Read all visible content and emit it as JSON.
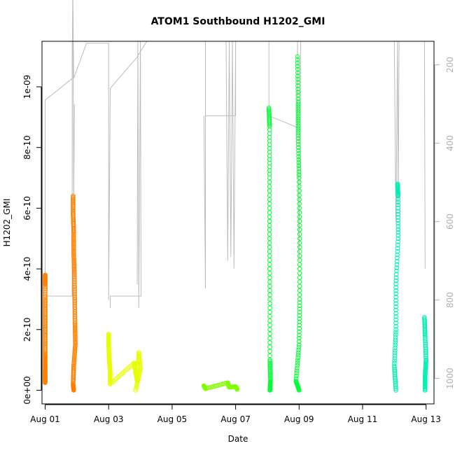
{
  "chart_data": {
    "type": "scatter",
    "title": "ATOM1 Southbound H1202_GMI",
    "xlabel": "Date",
    "ylabel": "H1202_GMI",
    "x_ticks": [
      "Aug 01",
      "Aug 03",
      "Aug 05",
      "Aug 07",
      "Aug 09",
      "Aug 11",
      "Aug 13"
    ],
    "x_range_days": [
      0.9,
      13.25
    ],
    "y_ticks": [
      "0e+00",
      "2e-10",
      "4e-10",
      "6e-10",
      "8e-10",
      "1e-09"
    ],
    "ylim": [
      -4.5e-11,
      1.15e-09
    ],
    "right_axis_ticks": [
      200,
      400,
      600,
      800,
      1000
    ],
    "right_axis_range": [
      1065,
      140
    ],
    "colors": {
      "orange": "#ff8000",
      "yellow": "#e6ff00",
      "green": "#00ff33",
      "teal": "#00f0b0",
      "line": "#bdbdbd",
      "right_axis": "#b0b0b0"
    },
    "series": [
      {
        "color": "#ff8000",
        "points": [
          [
            1.0,
            3.5e-10
          ],
          [
            1.0,
            3.8e-10
          ],
          [
            1.0,
            3e-10
          ],
          [
            1.0,
            2.4e-10
          ],
          [
            1.0,
            1.8e-10
          ],
          [
            1.0,
            1.2e-10
          ],
          [
            1.0,
            8e-11
          ],
          [
            1.0,
            5e-11
          ],
          [
            1.0,
            2.5e-11
          ]
        ]
      },
      {
        "color": "#ff8000",
        "points": [
          [
            1.88,
            6.4e-10
          ],
          [
            1.88,
            5.8e-10
          ],
          [
            1.9,
            5.2e-10
          ],
          [
            1.9,
            4.5e-10
          ],
          [
            1.92,
            3.8e-10
          ],
          [
            1.93,
            3e-10
          ],
          [
            1.94,
            2.2e-10
          ],
          [
            1.95,
            1.5e-10
          ],
          [
            1.9,
            8e-11
          ],
          [
            1.88,
            2e-11
          ],
          [
            1.9,
            0
          ]
        ]
      },
      {
        "color": "#e6ff00",
        "points": [
          [
            3.0,
            1.85e-10
          ],
          [
            3.0,
            1.5e-10
          ],
          [
            3.02,
            1e-10
          ],
          [
            3.05,
            6e-11
          ],
          [
            3.05,
            2e-11
          ],
          [
            3.8,
            9e-11
          ],
          [
            3.85,
            6e-11
          ],
          [
            3.9,
            3e-11
          ],
          [
            3.95,
            1.25e-10
          ],
          [
            4.0,
            7e-11
          ],
          [
            3.85,
            0
          ]
        ]
      },
      {
        "color": "#7fff00",
        "points": [
          [
            6.0,
            1.5e-11
          ],
          [
            6.05,
            5e-12
          ],
          [
            6.75,
            2.5e-11
          ],
          [
            6.8,
            1e-11
          ],
          [
            7.0,
            1.2e-11
          ],
          [
            7.05,
            3e-12
          ]
        ]
      },
      {
        "color": "#00ff33",
        "points": [
          [
            8.05,
            9.3e-10
          ],
          [
            8.07,
            8.7e-10
          ],
          [
            8.07,
            7e-10
          ],
          [
            8.07,
            5e-10
          ],
          [
            8.08,
            3e-10
          ],
          [
            8.08,
            1e-10
          ],
          [
            8.1,
            3e-11
          ],
          [
            8.08,
            0
          ]
        ]
      },
      {
        "color": "#00ff33",
        "points": [
          [
            8.95,
            1.1e-09
          ],
          [
            8.97,
            9.5e-10
          ],
          [
            8.97,
            8.4e-10
          ],
          [
            9.0,
            7e-10
          ],
          [
            9.02,
            5e-10
          ],
          [
            9.02,
            3e-10
          ],
          [
            9.0,
            1.5e-10
          ],
          [
            8.9,
            3e-11
          ],
          [
            9.0,
            0
          ]
        ]
      },
      {
        "color": "#00f0b0",
        "points": [
          [
            12.1,
            6.8e-10
          ],
          [
            12.12,
            6.4e-10
          ],
          [
            12.12,
            5e-10
          ],
          [
            12.05,
            3.5e-10
          ],
          [
            12.05,
            2e-10
          ],
          [
            12.0,
            8e-11
          ],
          [
            12.05,
            0
          ]
        ]
      },
      {
        "color": "#00f0b0",
        "points": [
          [
            12.95,
            2.4e-10
          ],
          [
            12.97,
            1.8e-10
          ],
          [
            13.0,
            1e-10
          ],
          [
            12.97,
            5e-11
          ],
          [
            12.97,
            0
          ]
        ]
      }
    ]
  }
}
